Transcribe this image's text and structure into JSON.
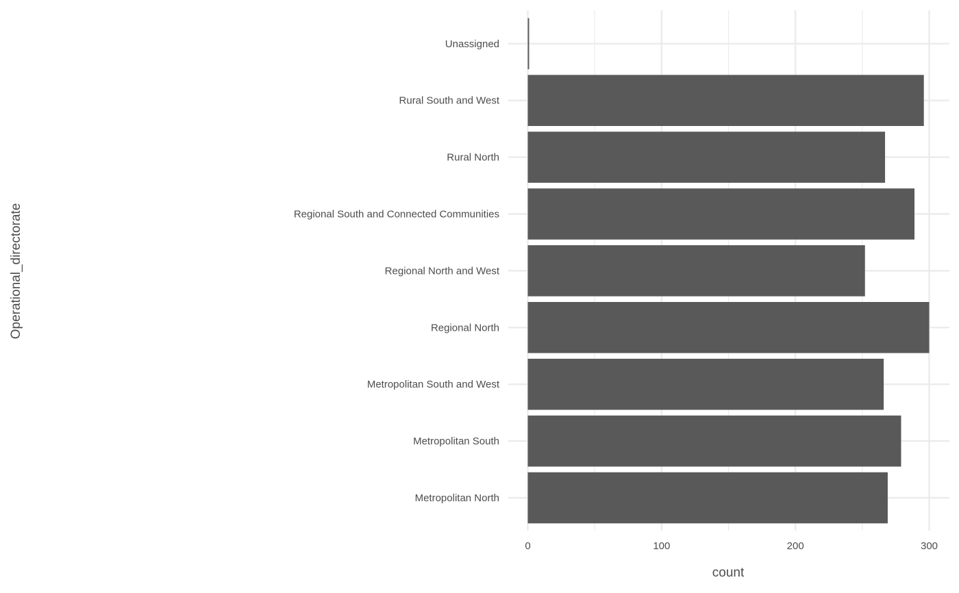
{
  "chart_data": {
    "type": "bar",
    "orientation": "horizontal",
    "categories": [
      "Metropolitan North",
      "Metropolitan South",
      "Metropolitan South and West",
      "Regional North",
      "Regional North and West",
      "Regional South and Connected Communities",
      "Rural North",
      "Rural South and West",
      "Unassigned"
    ],
    "values": [
      269,
      279,
      266,
      300,
      252,
      289,
      267,
      296,
      1
    ],
    "xlabel": "count",
    "ylabel": "Operational_directorate",
    "xlim": [
      0,
      315
    ],
    "xticks": [
      0,
      100,
      200,
      300
    ],
    "xtick_labels": [
      "0",
      "100",
      "200",
      "300"
    ],
    "bar_color": "#595959",
    "grid": true,
    "legend": "none"
  }
}
